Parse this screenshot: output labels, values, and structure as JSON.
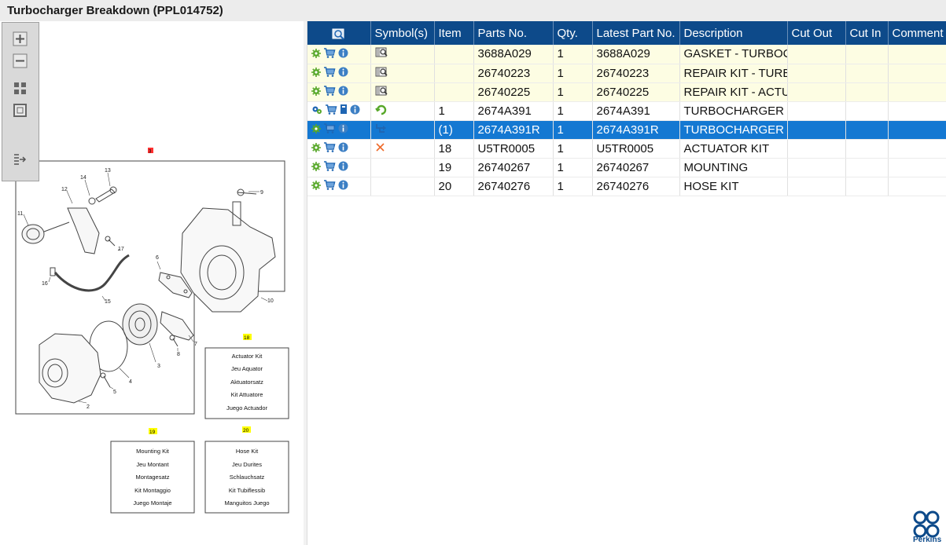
{
  "window": {
    "title": "Turbocharger Breakdown (PPL014752)"
  },
  "toolbar": {
    "buttons": [
      {
        "name": "zoom-in",
        "icon": "zoom-in-icon"
      },
      {
        "name": "zoom-out",
        "icon": "zoom-out-icon"
      },
      {
        "name": "fit-all",
        "icon": "fit-all-icon"
      },
      {
        "name": "fit-window",
        "icon": "fit-window-icon"
      },
      {
        "name": "expand-pane",
        "icon": "expand-pane-icon"
      }
    ]
  },
  "diagram": {
    "group_callout": "3",
    "callouts": [
      "2",
      "3",
      "4",
      "5",
      "6",
      "7",
      "8",
      "9",
      "10",
      "11",
      "12",
      "13",
      "14",
      "15",
      "16",
      "17"
    ],
    "kits": [
      {
        "number": "18",
        "lines": [
          "Actuator Kit",
          "Jeu Aquator",
          "Aktuatorsatz",
          "Kit Attuatore",
          "Juego Actuador"
        ]
      },
      {
        "number": "19",
        "lines": [
          "Mounting Kit",
          "Jeu Montant",
          "Montagesatz",
          "Kit Montaggio",
          "Juego Montaje"
        ]
      },
      {
        "number": "20",
        "lines": [
          "Hose Kit",
          "Jeu Durites",
          "Schlauchsatz",
          "Kit Tubiflessib",
          "Manguitos Juego"
        ]
      }
    ]
  },
  "grid": {
    "columns": [
      "",
      "Symbol(s)",
      "Item",
      "Parts No.",
      "Qty.",
      "Latest Part No.",
      "Description",
      "Cut Out",
      "Cut In",
      "Comment"
    ],
    "rows": [
      {
        "actions": [
          "gear-icon",
          "cart-icon",
          "info-icon"
        ],
        "symbol": "catalog-icon",
        "item": "",
        "part_no": "3688A029",
        "qty": "1",
        "latest": "3688A029",
        "description": "GASKET - TURBOCH",
        "cut_out": "",
        "cut_in": "",
        "comment": "",
        "state": "highlight"
      },
      {
        "actions": [
          "gear-icon",
          "cart-icon",
          "info-icon"
        ],
        "symbol": "catalog-icon",
        "item": "",
        "part_no": "26740223",
        "qty": "1",
        "latest": "26740223",
        "description": "REPAIR KIT - TURBC",
        "cut_out": "",
        "cut_in": "",
        "comment": "",
        "state": "highlight"
      },
      {
        "actions": [
          "gear-icon",
          "cart-icon",
          "info-icon"
        ],
        "symbol": "catalog-icon",
        "item": "",
        "part_no": "26740225",
        "qty": "1",
        "latest": "26740225",
        "description": "REPAIR KIT - ACTUA",
        "cut_out": "",
        "cut_in": "",
        "comment": "",
        "state": "highlight"
      },
      {
        "actions": [
          "gears-icon",
          "cart-icon",
          "book-icon",
          "info-icon"
        ],
        "symbol": "cycle-icon",
        "item": "1",
        "part_no": "2674A391",
        "qty": "1",
        "latest": "2674A391",
        "description": "TURBOCHARGER",
        "cut_out": "",
        "cut_in": "",
        "comment": "",
        "state": "normal"
      },
      {
        "actions": [
          "gear-icon",
          "cart-icon",
          "info-icon"
        ],
        "symbol": "tree-icon",
        "item": "(1)",
        "part_no": "2674A391R",
        "qty": "1",
        "latest": "2674A391R",
        "description": "TURBOCHARGER - E",
        "cut_out": "",
        "cut_in": "",
        "comment": "",
        "state": "selected"
      },
      {
        "actions": [
          "gear-icon",
          "cart-icon",
          "info-icon"
        ],
        "symbol": "cross-icon",
        "item": "18",
        "part_no": "U5TR0005",
        "qty": "1",
        "latest": "U5TR0005",
        "description": "ACTUATOR KIT",
        "cut_out": "",
        "cut_in": "",
        "comment": "",
        "state": "normal"
      },
      {
        "actions": [
          "gear-icon",
          "cart-icon",
          "info-icon"
        ],
        "symbol": "",
        "item": "19",
        "part_no": "26740267",
        "qty": "1",
        "latest": "26740267",
        "description": "MOUNTING",
        "cut_out": "",
        "cut_in": "",
        "comment": "",
        "state": "normal"
      },
      {
        "actions": [
          "gear-icon",
          "cart-icon",
          "info-icon"
        ],
        "symbol": "",
        "item": "20",
        "part_no": "26740276",
        "qty": "1",
        "latest": "26740276",
        "description": "HOSE KIT",
        "cut_out": "",
        "cut_in": "",
        "comment": "",
        "state": "normal"
      }
    ]
  },
  "brand": {
    "name": "Perkins",
    "color": "#0d4a8a"
  },
  "colors": {
    "header": "#0d4a8a",
    "selected_row": "#1478d2",
    "highlight_row": "#fdfde3",
    "callout_yellow": "#ffff00",
    "callout_red": "#ff3030"
  }
}
